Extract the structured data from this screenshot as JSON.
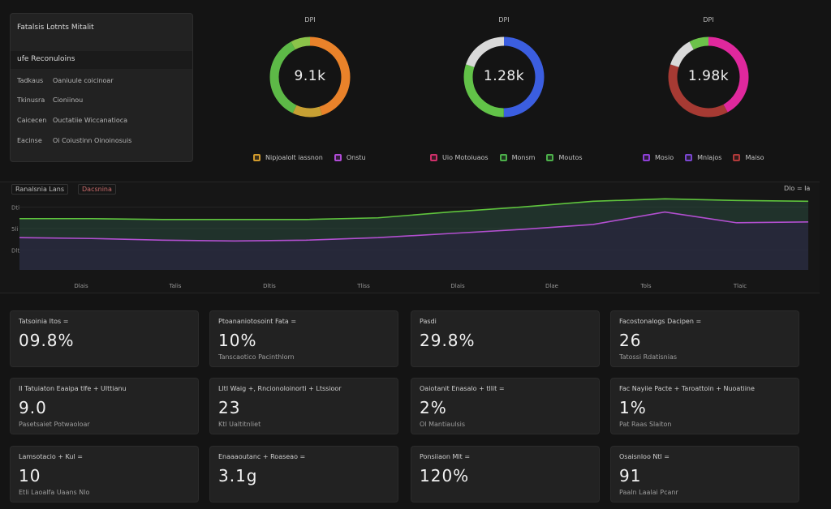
{
  "side_panel": {
    "title": "Fatalsis Lotnts Mitalit",
    "subtitle": "ufe Reconuloins",
    "rows": [
      {
        "k": "Tadkaus",
        "v": "Oaniuule coicinoar"
      },
      {
        "k": "Tkinusra",
        "v": "Cioniinou"
      },
      {
        "k": "Caicecen",
        "v": "Ouctatiie Wiccanatioca"
      },
      {
        "k": "Eacinse",
        "v": "Oi Coiustinn Oinoinosuis"
      }
    ]
  },
  "donuts": [
    {
      "label": "DPI",
      "value": "9.1k",
      "segments": [
        {
          "color": "#e9822a",
          "frac": 0.45
        },
        {
          "color": "#c7a033",
          "frac": 0.12
        },
        {
          "color": "#5db947",
          "frac": 0.35
        },
        {
          "color": "#8bc34a",
          "frac": 0.08
        }
      ]
    },
    {
      "label": "DPI",
      "value": "1.28k",
      "segments": [
        {
          "color": "#3b5ee0",
          "frac": 0.5
        },
        {
          "color": "#62c248",
          "frac": 0.3
        },
        {
          "color": "#d9d9d9",
          "frac": 0.2
        }
      ]
    },
    {
      "label": "DPI",
      "value": "1.98k",
      "segments": [
        {
          "color": "#e0289d",
          "frac": 0.42
        },
        {
          "color": "#a63a33",
          "frac": 0.38
        },
        {
          "color": "#d9d9d9",
          "frac": 0.12
        },
        {
          "color": "#6cc24a",
          "frac": 0.08
        }
      ]
    }
  ],
  "legends": {
    "group1": [
      {
        "label": "Nipjoalolt iassnon",
        "color": "#d19a2c"
      },
      {
        "label": "Onstu",
        "color": "#b04bd6"
      }
    ],
    "group2": [
      {
        "label": "Uio Motoiuaos",
        "color": "#cf2f6a"
      },
      {
        "label": "Monsm",
        "color": "#4cb04a"
      },
      {
        "label": "Moutos",
        "color": "#4cb04a"
      }
    ],
    "group3": [
      {
        "label": "Mosio",
        "color": "#8e3fd6"
      },
      {
        "label": "Mnlajos",
        "color": "#7a46d0"
      },
      {
        "label": "Maiso",
        "color": "#b13a3a"
      }
    ]
  },
  "chart": {
    "tag_left": "Ranalsnia Lans",
    "tag_right": "Dacsnina",
    "tag_corner": "Dlo = Ia",
    "y_ticks": [
      "Dti",
      "5li",
      "Dlt"
    ],
    "x_ticks": [
      "Dlais",
      "Talis",
      "Dltis",
      "Tliss",
      "Dlais",
      "Dlae",
      "Tols",
      "Tlaic"
    ],
    "colors": {
      "green": "#5fc43d",
      "purple": "#b24fd0"
    },
    "green_series": [
      0.62,
      0.62,
      0.61,
      0.61,
      0.61,
      0.63,
      0.7,
      0.76,
      0.83,
      0.86,
      0.84,
      0.83
    ],
    "purple_series": [
      0.39,
      0.38,
      0.36,
      0.35,
      0.36,
      0.39,
      0.44,
      0.49,
      0.55,
      0.7,
      0.57,
      0.58
    ]
  },
  "cards": [
    {
      "title": "Tatsoinia Itos =",
      "value": "09.8%",
      "sub": ""
    },
    {
      "title": "Ptoananiotosoint   Fata =",
      "value": "10%",
      "sub": "Tanscaotico Pacinthlorn"
    },
    {
      "title": "Pasdi",
      "value": "29.8%",
      "sub": ""
    },
    {
      "title": "Facostonalogs   Dacipen =",
      "value": "26",
      "sub": "Tatossi Rdatisnias"
    },
    {
      "title": "Il Tatuiaton Eaaipa tlfe + Ulttianu",
      "value": "9.0",
      "sub": "Pasetsaiet Potwaoloar"
    },
    {
      "title": "Lltl Waig +, Rncionoloinorti + Ltssioor",
      "value": "23",
      "sub": "Ktl Ualtitnliet"
    },
    {
      "title": "Oaiotanit   Enasalo + tllit =",
      "value": "2%",
      "sub": "Ol Mantiaulsis"
    },
    {
      "title": "Fac Nayiie Pacte + Taroattoin + Nuoatiine",
      "value": "1%",
      "sub": "Pat Raas Slaiton"
    },
    {
      "title": "Lamsotacio + Kul =",
      "value": "10",
      "sub": "Etli Laoalfa Uaans Nlo"
    },
    {
      "title": "Enaaaoutanc + Roaseao =",
      "value": "3.1g",
      "sub": ""
    },
    {
      "title": "Ponsiiaon Mlt =",
      "value": "120%",
      "sub": ""
    },
    {
      "title": "Osaisnloo   Ntl =",
      "value": "91",
      "sub": "Paaln Laalai Pcanr"
    }
  ]
}
